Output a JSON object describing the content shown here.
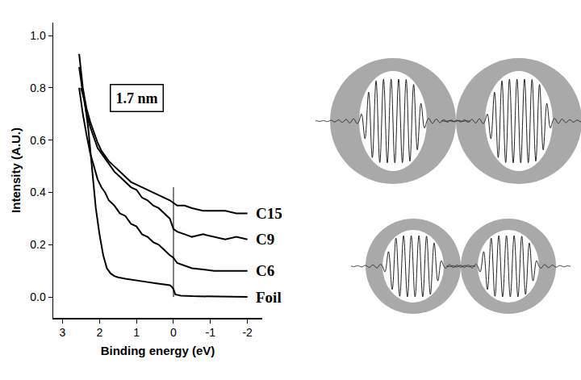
{
  "chart_data": {
    "type": "line",
    "x_label": "Binding energy (eV)",
    "y_label": "Intensity (A.U.)",
    "xlim": [
      3.25,
      -2.4
    ],
    "ylim": [
      -0.08,
      1.05
    ],
    "xticks": [
      3,
      2,
      1,
      0,
      -1,
      -2
    ],
    "yticks": [
      {
        "value": 0,
        "label": "0.0"
      },
      {
        "value": 0.2,
        "label": "0.2"
      },
      {
        "value": 0.4,
        "label": "0.4"
      },
      {
        "value": 0.6,
        "label": "0.6"
      },
      {
        "value": 0.8,
        "label": "0.8"
      },
      {
        "value": 1.0,
        "label": "1.0"
      }
    ],
    "grid": false,
    "annotations": [
      {
        "text": "1.7 nm",
        "x": 1.0,
        "y": 0.76
      }
    ],
    "reference_line": {
      "x": 0,
      "y": [
        0,
        0.42
      ]
    },
    "series": [
      {
        "name": "C15",
        "color": "#000000",
        "x": [
          2.55,
          2.45,
          2.35,
          2.25,
          2.15,
          2.05,
          1.95,
          1.85,
          1.75,
          1.6,
          1.45,
          1.3,
          1.15,
          1.0,
          0.85,
          0.7,
          0.55,
          0.4,
          0.25,
          0.1,
          0,
          -0.1,
          -0.3,
          -0.5,
          -0.8,
          -1.1,
          -1.4,
          -1.7,
          -2
        ],
        "values": [
          0.93,
          0.8,
          0.72,
          0.67,
          0.63,
          0.59,
          0.56,
          0.54,
          0.52,
          0.5,
          0.48,
          0.46,
          0.44,
          0.43,
          0.42,
          0.41,
          0.4,
          0.39,
          0.38,
          0.37,
          0.36,
          0.35,
          0.35,
          0.34,
          0.33,
          0.33,
          0.33,
          0.32,
          0.32
        ]
      },
      {
        "name": "C9",
        "color": "#000000",
        "x": [
          2.55,
          2.45,
          2.35,
          2.25,
          2.15,
          2.05,
          1.95,
          1.85,
          1.75,
          1.6,
          1.45,
          1.3,
          1.15,
          1.0,
          0.85,
          0.7,
          0.55,
          0.4,
          0.25,
          0.1,
          0,
          -0.1,
          -0.3,
          -0.5,
          -0.8,
          -1.1,
          -1.4,
          -1.7,
          -2
        ],
        "values": [
          0.88,
          0.78,
          0.7,
          0.65,
          0.61,
          0.57,
          0.55,
          0.53,
          0.51,
          0.48,
          0.46,
          0.44,
          0.42,
          0.41,
          0.38,
          0.37,
          0.35,
          0.34,
          0.32,
          0.3,
          0.26,
          0.25,
          0.24,
          0.23,
          0.24,
          0.23,
          0.22,
          0.23,
          0.22
        ]
      },
      {
        "name": "C6",
        "color": "#000000",
        "x": [
          2.55,
          2.45,
          2.35,
          2.25,
          2.15,
          2.05,
          1.95,
          1.85,
          1.75,
          1.6,
          1.45,
          1.3,
          1.15,
          1.0,
          0.85,
          0.7,
          0.55,
          0.4,
          0.25,
          0.1,
          0,
          -0.1,
          -0.3,
          -0.5,
          -0.8,
          -1.1,
          -1.4,
          -1.7,
          -2
        ],
        "values": [
          0.8,
          0.7,
          0.62,
          0.55,
          0.5,
          0.45,
          0.42,
          0.4,
          0.37,
          0.35,
          0.32,
          0.31,
          0.28,
          0.27,
          0.24,
          0.23,
          0.21,
          0.2,
          0.18,
          0.16,
          0.15,
          0.13,
          0.12,
          0.11,
          0.105,
          0.1,
          0.1,
          0.1,
          0.1
        ]
      },
      {
        "name": "Foil",
        "color": "#000000",
        "x": [
          2.5,
          2.4,
          2.3,
          2.2,
          2.1,
          2.0,
          1.9,
          1.8,
          1.7,
          1.6,
          1.5,
          1.3,
          1.1,
          0.9,
          0.7,
          0.5,
          0.3,
          0.1,
          0.05,
          0,
          -0.05,
          -0.2,
          -0.5,
          -1,
          -1.5,
          -2
        ],
        "values": [
          0.8,
          0.75,
          0.64,
          0.48,
          0.34,
          0.24,
          0.16,
          0.11,
          0.09,
          0.08,
          0.075,
          0.07,
          0.065,
          0.06,
          0.057,
          0.053,
          0.05,
          0.045,
          0.04,
          0.03,
          0.01,
          0.005,
          0.003,
          0.002,
          0.001,
          0.0
        ]
      }
    ]
  }
}
